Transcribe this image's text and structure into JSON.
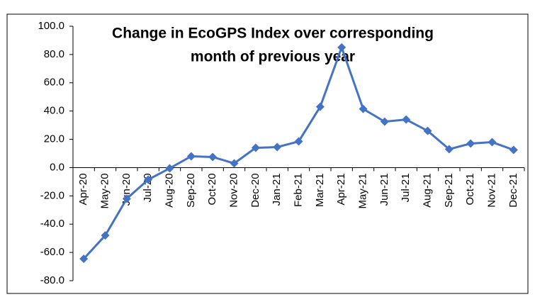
{
  "chart_data": {
    "type": "line",
    "title": [
      "Change in EcoGPS Index over corresponding",
      "month of previous year"
    ],
    "categories": [
      "Apr-20",
      "May-20",
      "Jun-20",
      "Jul-20",
      "Aug-20",
      "Sep-20",
      "Oct-20",
      "Nov-20",
      "Dec-20",
      "Jan-21",
      "Feb-21",
      "Mar-21",
      "Apr-21",
      "May-21",
      "Jun-21",
      "Jul-21",
      "Aug-21",
      "Sep-21",
      "Oct-21",
      "Nov-21",
      "Dec-21"
    ],
    "series": [
      {
        "color": "#4472c4",
        "values": [
          -64.5,
          -48,
          -22,
          -8.5,
          -0.5,
          8,
          7.5,
          3,
          14,
          14.5,
          18.5,
          43,
          85,
          41.5,
          32.5,
          34,
          26,
          13,
          17,
          18,
          12.5
        ]
      }
    ],
    "ylim": [
      -80,
      100
    ],
    "yticks": [
      {
        "value": -80,
        "label": "-80.0"
      },
      {
        "value": -60,
        "label": "-60.0"
      },
      {
        "value": -40,
        "label": "-40.0"
      },
      {
        "value": -20,
        "label": "-20.0"
      },
      {
        "value": 0,
        "label": "0.0"
      },
      {
        "value": 20,
        "label": "20.0"
      },
      {
        "value": 40,
        "label": "40.0"
      },
      {
        "value": 60,
        "label": "60.0"
      },
      {
        "value": 80,
        "label": "80.0"
      },
      {
        "value": 100,
        "label": "100.0"
      }
    ],
    "grid": false
  }
}
